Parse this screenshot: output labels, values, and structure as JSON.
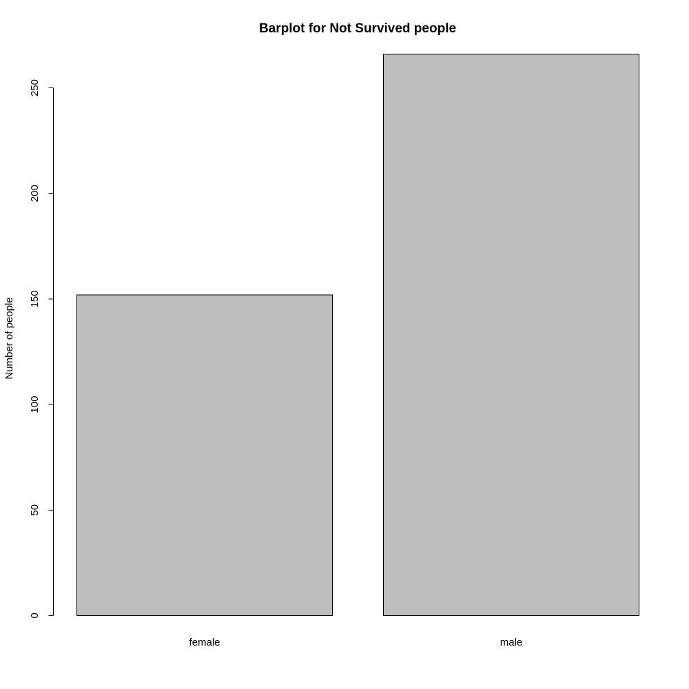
{
  "chart_data": {
    "type": "bar",
    "title": "Barplot for Not Survived people",
    "xlabel": "",
    "ylabel": "Number of people",
    "categories": [
      "female",
      "male"
    ],
    "values": [
      152,
      266
    ],
    "ylim": [
      0,
      250
    ],
    "yticks": [
      0,
      50,
      100,
      150,
      200,
      250
    ],
    "grid": false,
    "legend": "none",
    "bar_color": "#bebebe",
    "border_color": "#000000"
  }
}
